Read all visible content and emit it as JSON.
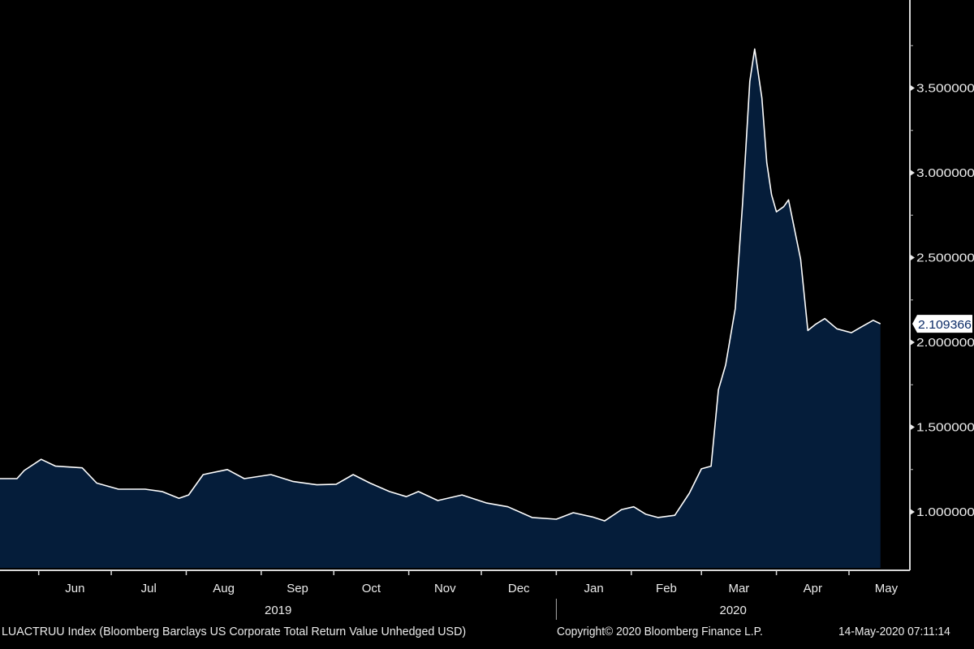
{
  "chart_data": {
    "type": "area",
    "title": "LUACTRUU Index (Bloomberg Barclays US Corporate Total Return Value Unhedged USD)",
    "xlabel": "",
    "ylabel": "",
    "ylim": [
      0.67,
      4.02
    ],
    "xlim": [
      "2019-05-16",
      "2020-06-02"
    ],
    "grid": false,
    "y_ticks": [
      {
        "value": 1.0,
        "label": "1.000000"
      },
      {
        "value": 1.5,
        "label": "1.500000"
      },
      {
        "value": 2.0,
        "label": "2.000000"
      },
      {
        "value": 2.5,
        "label": "2.500000"
      },
      {
        "value": 3.0,
        "label": "3.000000"
      },
      {
        "value": 3.5,
        "label": "3.500000"
      }
    ],
    "months": [
      {
        "start": "2019-06-01",
        "label": "Jun"
      },
      {
        "start": "2019-07-01",
        "label": "Jul"
      },
      {
        "start": "2019-08-01",
        "label": "Aug"
      },
      {
        "start": "2019-09-01",
        "label": "Sep"
      },
      {
        "start": "2019-10-01",
        "label": "Oct"
      },
      {
        "start": "2019-11-01",
        "label": "Nov"
      },
      {
        "start": "2019-12-01",
        "label": "Dec"
      },
      {
        "start": "2020-01-01",
        "label": "Jan"
      },
      {
        "start": "2020-02-01",
        "label": "Feb"
      },
      {
        "start": "2020-03-01",
        "label": "Mar"
      },
      {
        "start": "2020-04-01",
        "label": "Apr"
      },
      {
        "start": "2020-05-01",
        "label": "May"
      }
    ],
    "years": [
      {
        "label": "2019",
        "from": "2019-05-16",
        "to": "2020-01-01"
      },
      {
        "label": "2020",
        "from": "2020-01-01",
        "to": "2020-06-02"
      }
    ],
    "last_value_label": "2.109366",
    "series": [
      {
        "name": "LUACTRUU Index",
        "color": "#ffffff",
        "fill": "#051d3a",
        "points": [
          [
            "2019-05-16",
            1.196
          ],
          [
            "2019-05-23",
            1.196
          ],
          [
            "2019-05-26",
            1.244
          ],
          [
            "2019-06-02",
            1.31
          ],
          [
            "2019-06-08",
            1.27
          ],
          [
            "2019-06-19",
            1.26
          ],
          [
            "2019-06-25",
            1.17
          ],
          [
            "2019-07-04",
            1.134
          ],
          [
            "2019-07-15",
            1.134
          ],
          [
            "2019-07-22",
            1.12
          ],
          [
            "2019-07-29",
            1.08
          ],
          [
            "2019-08-02",
            1.1
          ],
          [
            "2019-08-08",
            1.22
          ],
          [
            "2019-08-18",
            1.25
          ],
          [
            "2019-08-25",
            1.196
          ],
          [
            "2019-09-05",
            1.22
          ],
          [
            "2019-09-14",
            1.18
          ],
          [
            "2019-09-24",
            1.16
          ],
          [
            "2019-10-02",
            1.163
          ],
          [
            "2019-10-09",
            1.22
          ],
          [
            "2019-10-16",
            1.17
          ],
          [
            "2019-10-24",
            1.12
          ],
          [
            "2019-10-31",
            1.09
          ],
          [
            "2019-11-05",
            1.12
          ],
          [
            "2019-11-13",
            1.067
          ],
          [
            "2019-11-23",
            1.1
          ],
          [
            "2019-12-03",
            1.053
          ],
          [
            "2019-12-12",
            1.03
          ],
          [
            "2019-12-22",
            0.967
          ],
          [
            "2020-01-01",
            0.957
          ],
          [
            "2020-01-08",
            0.995
          ],
          [
            "2020-01-16",
            0.97
          ],
          [
            "2020-01-21",
            0.947
          ],
          [
            "2020-01-28",
            1.014
          ],
          [
            "2020-02-02",
            1.03
          ],
          [
            "2020-02-07",
            0.986
          ],
          [
            "2020-02-12",
            0.967
          ],
          [
            "2020-02-19",
            0.98
          ],
          [
            "2020-02-25",
            1.11
          ],
          [
            "2020-03-01",
            1.254
          ],
          [
            "2020-03-05",
            1.27
          ],
          [
            "2020-03-08",
            1.72
          ],
          [
            "2020-03-11",
            1.866
          ],
          [
            "2020-03-15",
            2.2
          ],
          [
            "2020-03-18",
            2.82
          ],
          [
            "2020-03-21",
            3.54
          ],
          [
            "2020-03-23",
            3.73
          ],
          [
            "2020-03-26",
            3.44
          ],
          [
            "2020-03-28",
            3.06
          ],
          [
            "2020-03-30",
            2.87
          ],
          [
            "2020-04-01",
            2.77
          ],
          [
            "2020-04-04",
            2.8
          ],
          [
            "2020-04-06",
            2.84
          ],
          [
            "2020-04-11",
            2.49
          ],
          [
            "2020-04-14",
            2.07
          ],
          [
            "2020-04-17",
            2.105
          ],
          [
            "2020-04-21",
            2.14
          ],
          [
            "2020-04-26",
            2.08
          ],
          [
            "2020-05-02",
            2.057
          ],
          [
            "2020-05-06",
            2.09
          ],
          [
            "2020-05-11",
            2.13
          ],
          [
            "2020-05-14",
            2.109366
          ]
        ]
      }
    ]
  },
  "footer": {
    "index_label": "LUACTRUU Index (Bloomberg Barclays US Corporate Total Return Value Unhedged USD)",
    "copyright": "Copyright© 2020 Bloomberg Finance L.P.",
    "timestamp": "14-May-2020 07:11:14"
  }
}
